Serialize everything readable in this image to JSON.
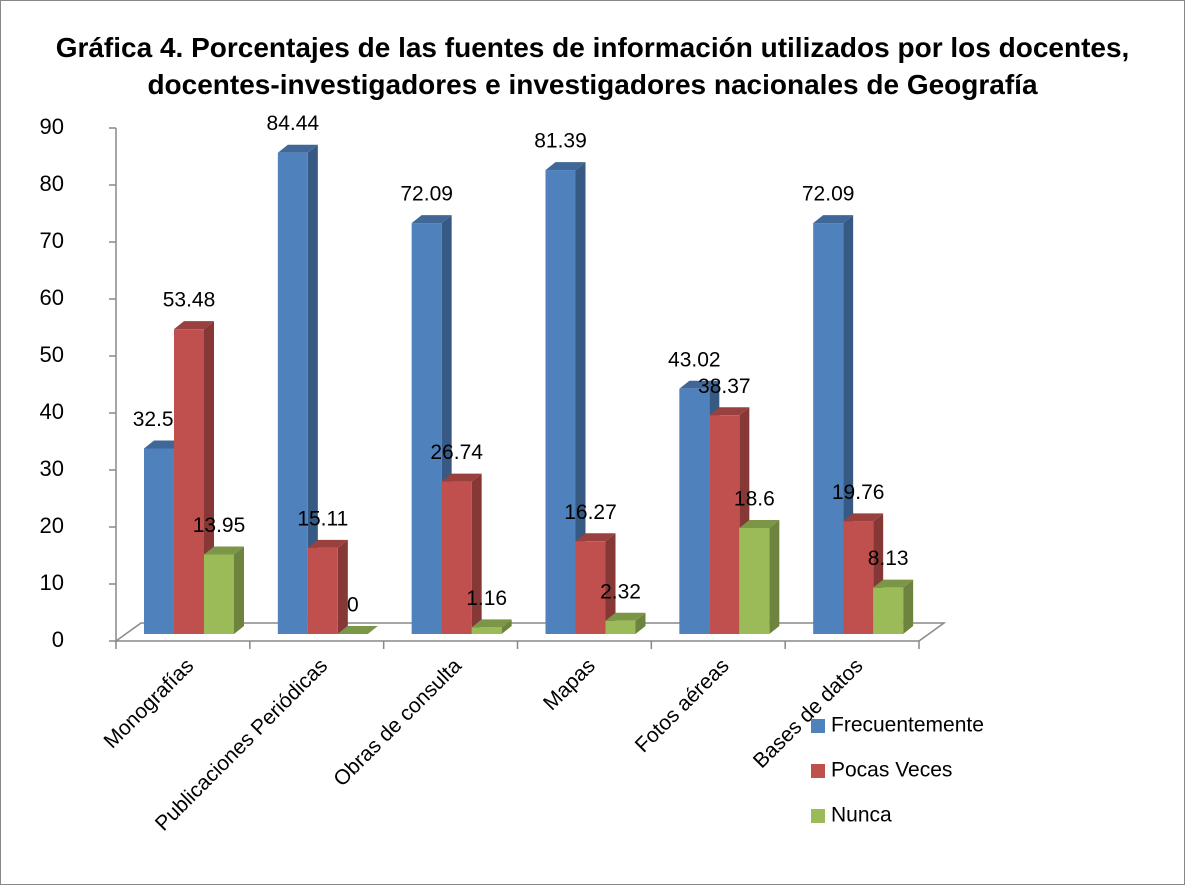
{
  "chart_data": {
    "type": "bar3d",
    "title": "Gráfica 4. Porcentajes de las fuentes de información utilizados por los docentes, docentes-investigadores e investigadores nacionales de Geografía",
    "categories": [
      "Monografías",
      "Publicaciones Periódicas",
      "Obras de consulta",
      "Mapas",
      "Fotos aéreas",
      "Bases de datos"
    ],
    "series": [
      {
        "name": "Frecuentemente",
        "color": "#4f81bd",
        "values": [
          32.55,
          84.44,
          72.09,
          81.39,
          43.02,
          72.09
        ]
      },
      {
        "name": "Pocas Veces",
        "color": "#c0504d",
        "values": [
          53.48,
          15.11,
          26.74,
          16.27,
          38.37,
          19.76
        ]
      },
      {
        "name": "Nunca",
        "color": "#9bbb59",
        "values": [
          13.95,
          0,
          1.16,
          2.32,
          18.6,
          8.13
        ]
      }
    ],
    "ylim": [
      0,
      90
    ],
    "yticks": [
      0,
      10,
      20,
      30,
      40,
      50,
      60,
      70,
      80,
      90
    ],
    "legend": "bottom-right"
  }
}
